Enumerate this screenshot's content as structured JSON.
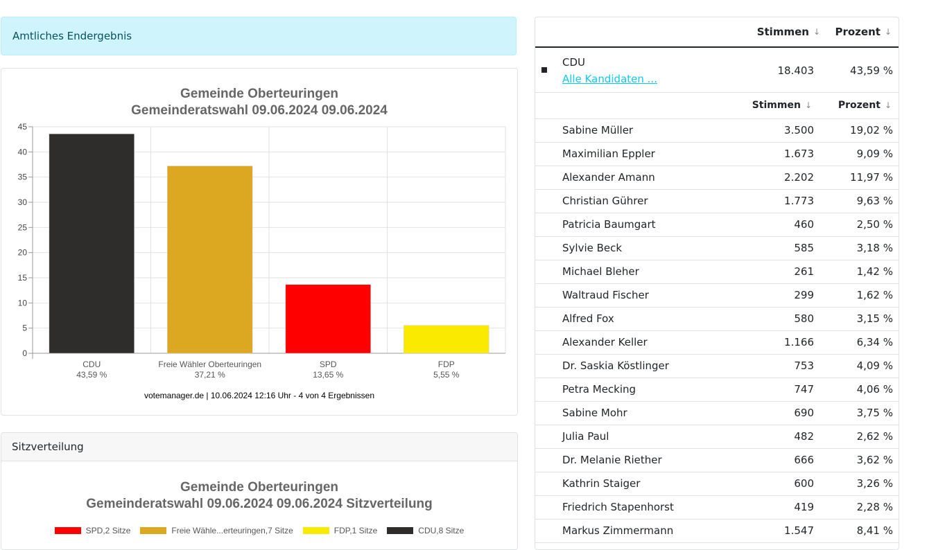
{
  "alert": {
    "text": "Amtliches Endergebnis"
  },
  "chart": {
    "title_line1": "Gemeinde Oberteuringen",
    "title_line2": "Gemeinderatswahl 09.06.2024 09.06.2024",
    "footer": "votemanager.de | 10.06.2024 12:16 Uhr - 4 von 4 Ergebnissen"
  },
  "chart_data": {
    "type": "bar",
    "title": "Gemeinde Oberteuringen Gemeinderatswahl 09.06.2024 09.06.2024",
    "categories": [
      "CDU",
      "Freie Wähler Oberteuringen",
      "SPD",
      "FDP"
    ],
    "category_sublabels": [
      "43,59 %",
      "37,21 %",
      "13,65 %",
      "5,55 %"
    ],
    "values": [
      43.59,
      37.21,
      13.65,
      5.55
    ],
    "colors": [
      "#2f2d2b",
      "#dca822",
      "#ff0000",
      "#f9ea00"
    ],
    "ylim": [
      0,
      45
    ],
    "yticks": [
      0,
      5,
      10,
      15,
      20,
      25,
      30,
      35,
      40,
      45
    ],
    "grid": true,
    "xlabel": "",
    "ylabel": ""
  },
  "seats": {
    "header": "Sitzverteilung",
    "title_line1": "Gemeinde Oberteuringen",
    "title_line2": "Gemeinderatswahl 09.06.2024 09.06.2024 Sitzverteilung",
    "legend": [
      {
        "label": "SPD,2 Sitze",
        "color": "#ff0000"
      },
      {
        "label": "Freie Wähle...erteuringen,7 Sitze",
        "color": "#dca822"
      },
      {
        "label": "FDP,1 Sitze",
        "color": "#f9ea00"
      },
      {
        "label": "CDU,8 Sitze",
        "color": "#2f2d2b"
      }
    ]
  },
  "table": {
    "col_votes": "Stimmen",
    "col_percent": "Prozent",
    "party": {
      "name": "CDU",
      "link": "Alle Kandidaten ...",
      "votes": "18.403",
      "percent": "43,59 %"
    },
    "candidates": [
      {
        "name": "Sabine Müller",
        "votes": "3.500",
        "percent": "19,02 %"
      },
      {
        "name": "Maximilian Eppler",
        "votes": "1.673",
        "percent": "9,09 %"
      },
      {
        "name": "Alexander Amann",
        "votes": "2.202",
        "percent": "11,97 %"
      },
      {
        "name": "Christian Gührer",
        "votes": "1.773",
        "percent": "9,63 %"
      },
      {
        "name": "Patricia Baumgart",
        "votes": "460",
        "percent": "2,50 %"
      },
      {
        "name": "Sylvie Beck",
        "votes": "585",
        "percent": "3,18 %"
      },
      {
        "name": "Michael Bleher",
        "votes": "261",
        "percent": "1,42 %"
      },
      {
        "name": "Waltraud Fischer",
        "votes": "299",
        "percent": "1,62 %"
      },
      {
        "name": "Alfred Fox",
        "votes": "580",
        "percent": "3,15 %"
      },
      {
        "name": "Alexander Keller",
        "votes": "1.166",
        "percent": "6,34 %"
      },
      {
        "name": "Dr. Saskia Köstlinger",
        "votes": "753",
        "percent": "4,09 %"
      },
      {
        "name": "Petra Mecking",
        "votes": "747",
        "percent": "4,06 %"
      },
      {
        "name": "Sabine Mohr",
        "votes": "690",
        "percent": "3,75 %"
      },
      {
        "name": "Julia Paul",
        "votes": "482",
        "percent": "2,62 %"
      },
      {
        "name": "Dr. Melanie Riether",
        "votes": "666",
        "percent": "3,62 %"
      },
      {
        "name": "Kathrin Staiger",
        "votes": "600",
        "percent": "3,26 %"
      },
      {
        "name": "Friedrich Stapenhorst",
        "votes": "419",
        "percent": "2,28 %"
      },
      {
        "name": "Markus Zimmermann",
        "votes": "1.547",
        "percent": "8,41 %"
      }
    ]
  }
}
